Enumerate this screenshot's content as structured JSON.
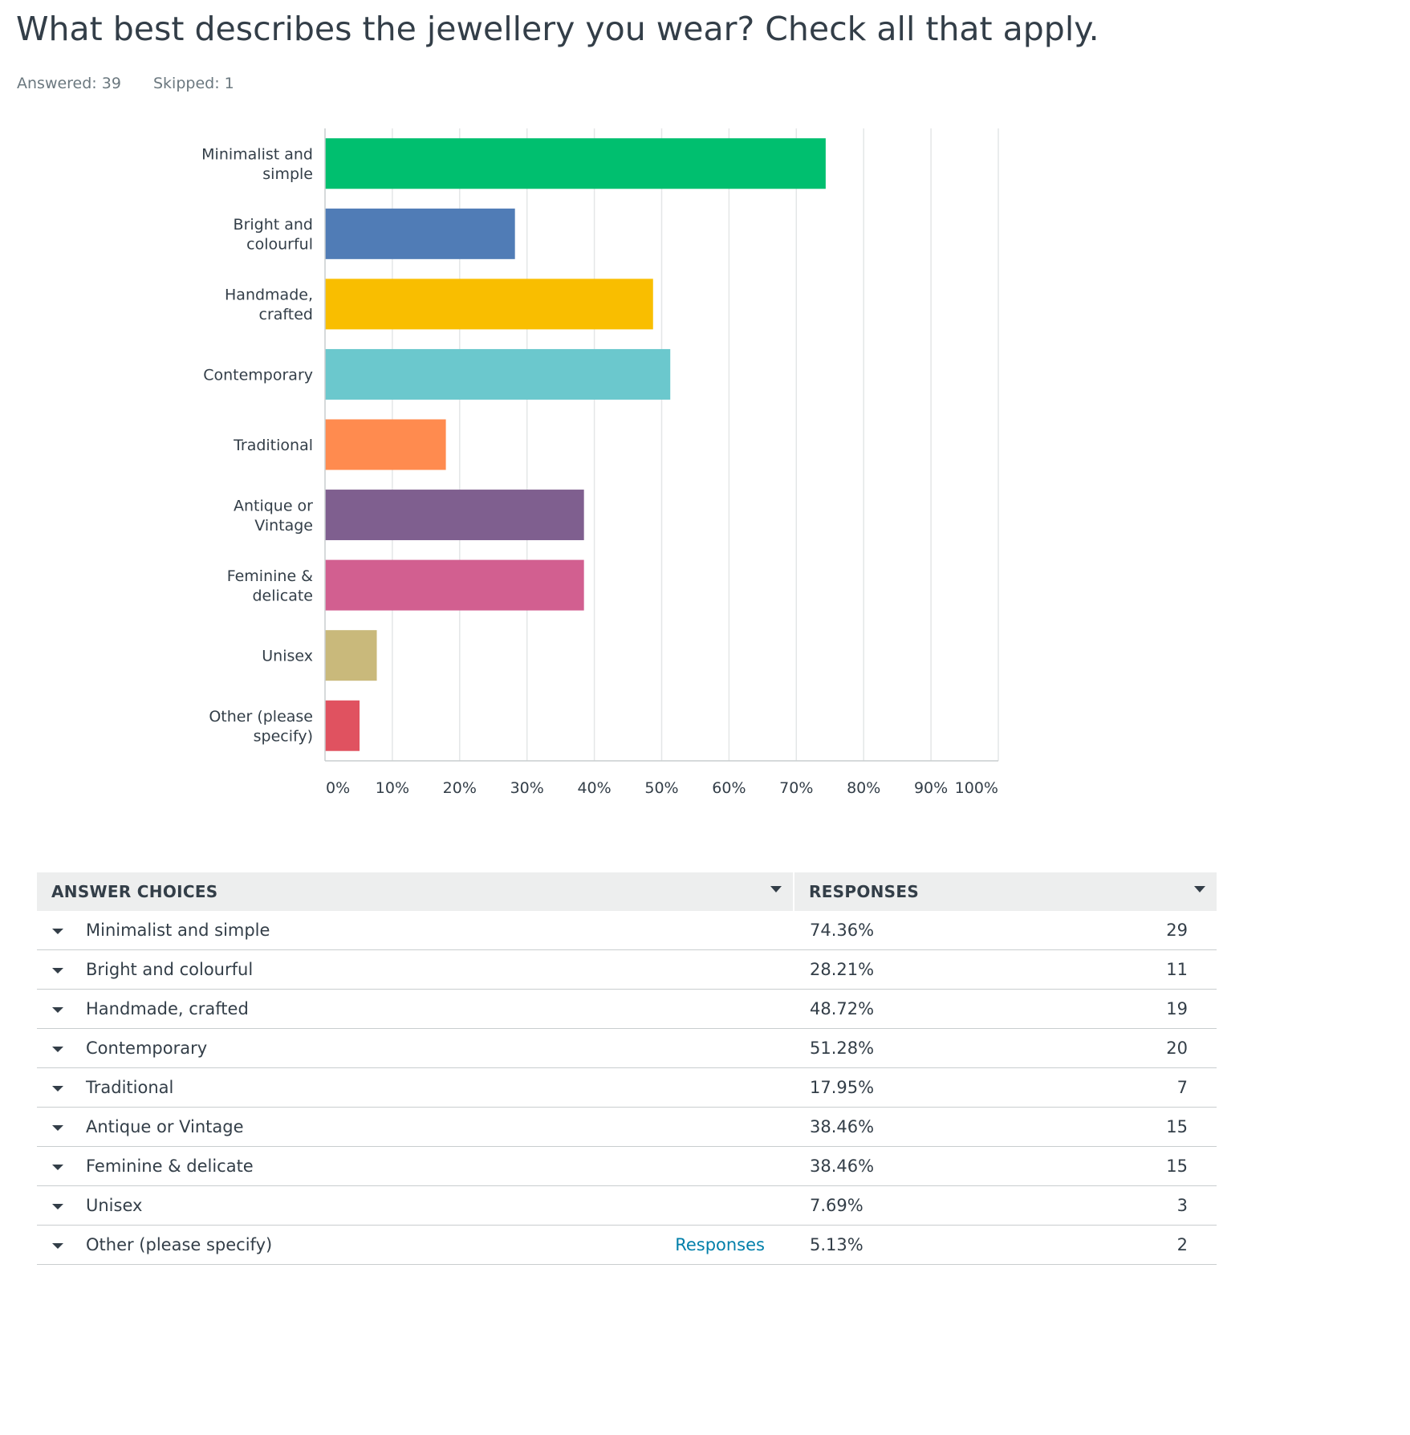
{
  "question": {
    "title": "What best describes the jewellery you wear? Check all that apply.",
    "answered_label": "Answered: 39",
    "skipped_label": "Skipped: 1"
  },
  "chart_data": {
    "type": "bar",
    "orientation": "horizontal",
    "categories": [
      [
        "Minimalist and",
        "simple"
      ],
      [
        "Bright and",
        "colourful"
      ],
      [
        "Handmade,",
        "crafted"
      ],
      [
        "Contemporary"
      ],
      [
        "Traditional"
      ],
      [
        "Antique or",
        "Vintage"
      ],
      [
        "Feminine &",
        "delicate"
      ],
      [
        "Unisex"
      ],
      [
        "Other (please",
        "specify)"
      ]
    ],
    "values": [
      74.36,
      28.21,
      48.72,
      51.28,
      17.95,
      38.46,
      38.46,
      7.69,
      5.13
    ],
    "colors": [
      "#00bf6f",
      "#507cb6",
      "#f9be00",
      "#6bc8cd",
      "#ff8b4f",
      "#7f5f8f",
      "#d25f90",
      "#c9b97b",
      "#e05260"
    ],
    "xlim": [
      0,
      100
    ],
    "x_ticks": [
      "0%",
      "10%",
      "20%",
      "30%",
      "40%",
      "50%",
      "60%",
      "70%",
      "80%",
      "90%",
      "100%"
    ],
    "grid": true
  },
  "table": {
    "header_choice": "ANSWER CHOICES",
    "header_responses": "RESPONSES",
    "responses_link": "Responses",
    "rows": [
      {
        "choice": "Minimalist and simple",
        "percent": "74.36%",
        "count": "29"
      },
      {
        "choice": "Bright and colourful",
        "percent": "28.21%",
        "count": "11"
      },
      {
        "choice": "Handmade, crafted",
        "percent": "48.72%",
        "count": "19"
      },
      {
        "choice": "Contemporary",
        "percent": "51.28%",
        "count": "20"
      },
      {
        "choice": "Traditional",
        "percent": "17.95%",
        "count": "7"
      },
      {
        "choice": "Antique or Vintage",
        "percent": "38.46%",
        "count": "15"
      },
      {
        "choice": "Feminine & delicate",
        "percent": "38.46%",
        "count": "15"
      },
      {
        "choice": "Unisex",
        "percent": "7.69%",
        "count": "3"
      },
      {
        "choice": "Other (please specify)",
        "percent": "5.13%",
        "count": "2"
      }
    ]
  }
}
